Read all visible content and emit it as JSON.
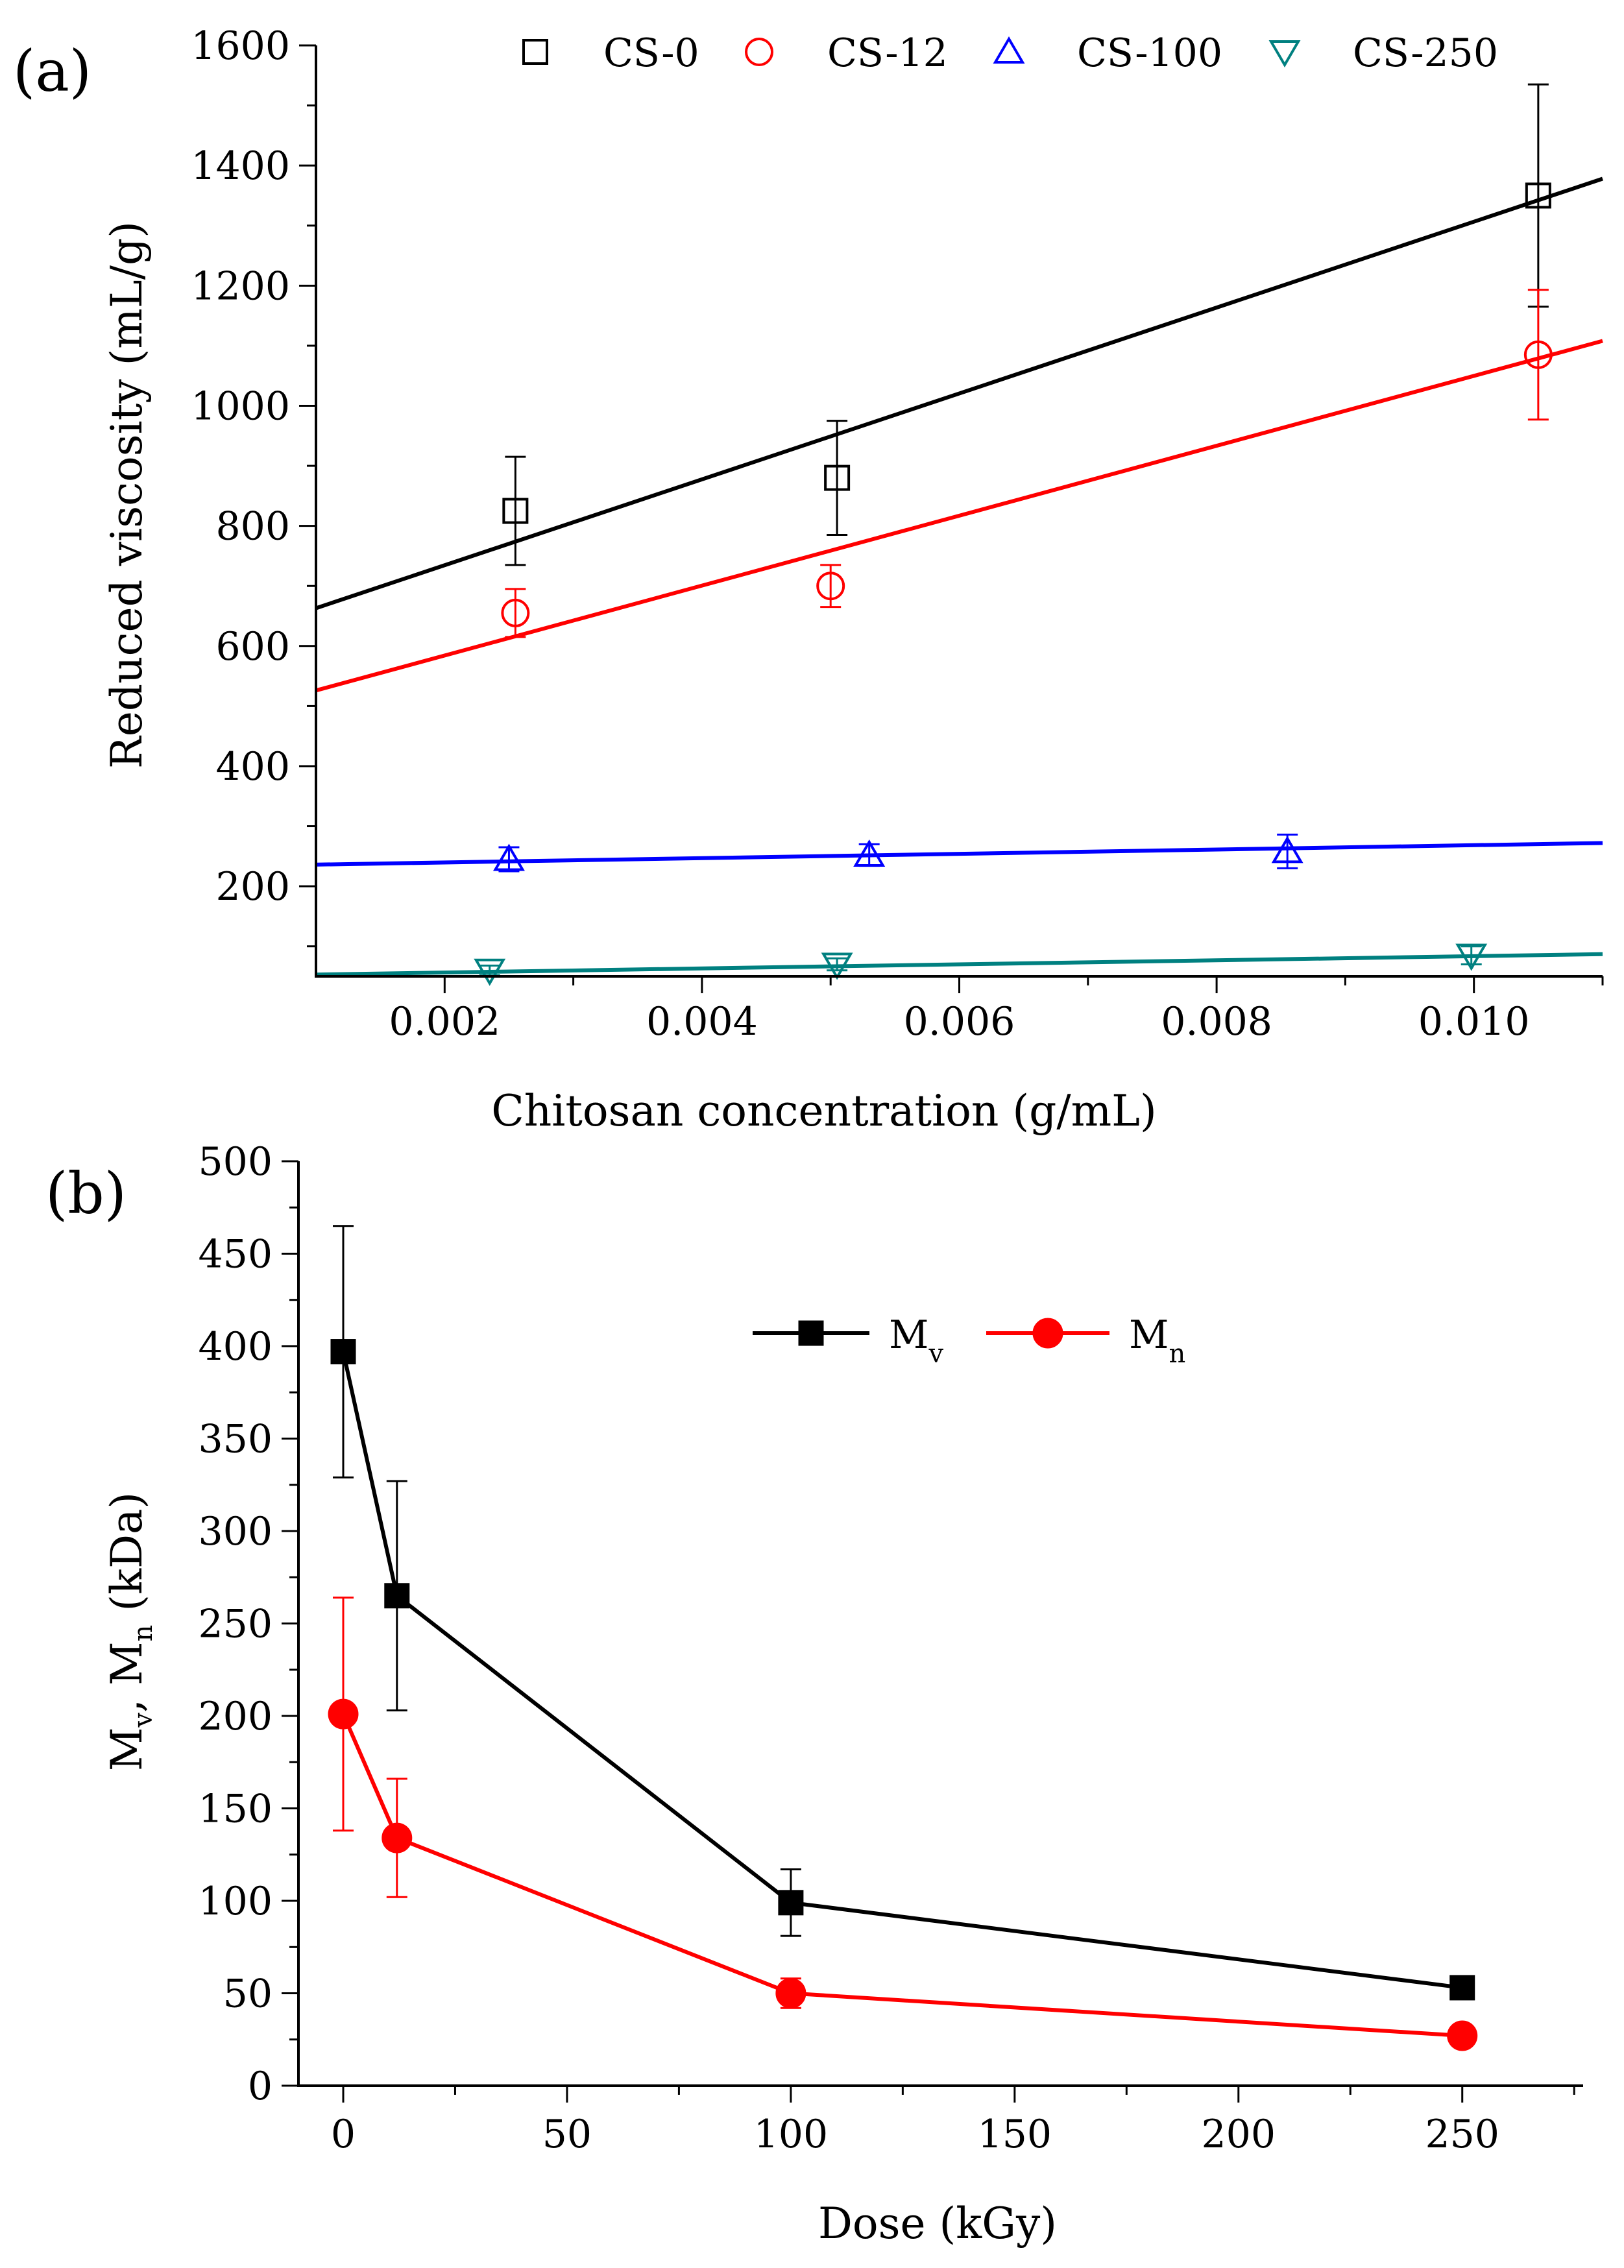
{
  "chart_data": [
    {
      "panel_label": "(a)",
      "type": "scatter",
      "xlabel": "Chitosan concentration (g/mL)",
      "ylabel": "Reduced viscosity (mL/g)",
      "xlim": [
        0.001,
        0.011
      ],
      "ylim": [
        50,
        1600
      ],
      "xticks": [
        0.002,
        0.004,
        0.006,
        0.008,
        0.01
      ],
      "xtick_labels": [
        "0.002",
        "0.004",
        "0.006",
        "0.008",
        "0.010"
      ],
      "yticks": [
        200,
        400,
        600,
        800,
        1000,
        1200,
        1400,
        1600
      ],
      "ytick_labels": [
        "200",
        "400",
        "600",
        "800",
        "1000",
        "1200",
        "1400",
        "1600"
      ],
      "legend_position": "top",
      "series": [
        {
          "name": "CS-0",
          "color": "#000000",
          "marker": "square",
          "x": [
            0.00255,
            0.00505,
            0.0105
          ],
          "y": [
            825,
            880,
            1350
          ],
          "err": [
            90,
            95,
            185
          ],
          "fit": [
            [
              0.001,
              663
            ],
            [
              0.011,
              1378
            ]
          ]
        },
        {
          "name": "CS-12",
          "color": "#ff0000",
          "marker": "circle",
          "x": [
            0.00255,
            0.005,
            0.0105
          ],
          "y": [
            655,
            700,
            1085
          ],
          "err": [
            40,
            35,
            108
          ],
          "fit": [
            [
              0.001,
              526
            ],
            [
              0.011,
              1108
            ]
          ]
        },
        {
          "name": "CS-100",
          "color": "#0000ff",
          "marker": "triangle-up",
          "x": [
            0.0025,
            0.0053,
            0.00855
          ],
          "y": [
            245,
            252,
            258
          ],
          "err": [
            20,
            18,
            28
          ],
          "fit": [
            [
              0.001,
              236
            ],
            [
              0.011,
              272
            ]
          ]
        },
        {
          "name": "CS-250",
          "color": "#008080",
          "marker": "triangle-down",
          "x": [
            0.00235,
            0.00505,
            0.00998
          ],
          "y": [
            60,
            70,
            85
          ],
          "err": [
            8,
            10,
            15
          ],
          "fit": [
            [
              0.001,
              53
            ],
            [
              0.011,
              87
            ]
          ]
        }
      ]
    },
    {
      "panel_label": "(b)",
      "type": "line",
      "xlabel": "Dose (kGy)",
      "ylabel_parts": [
        "M",
        "v",
        ", M",
        "n",
        " (kDa)"
      ],
      "xlim": [
        -10,
        277
      ],
      "ylim": [
        0,
        500
      ],
      "xticks": [
        0,
        50,
        100,
        150,
        200,
        250
      ],
      "xtick_labels": [
        "0",
        "50",
        "100",
        "150",
        "200",
        "250"
      ],
      "yticks": [
        0,
        50,
        100,
        150,
        200,
        250,
        300,
        350,
        400,
        450,
        500
      ],
      "ytick_labels": [
        "0",
        "50",
        "100",
        "150",
        "200",
        "250",
        "300",
        "350",
        "400",
        "450",
        "500"
      ],
      "legend_position": "top-right",
      "series": [
        {
          "name": "M",
          "sub": "v",
          "color": "#000000",
          "marker": "filled-square",
          "x": [
            0,
            12,
            100,
            250
          ],
          "y": [
            397,
            265,
            99,
            53
          ],
          "err": [
            68,
            62,
            18,
            6
          ]
        },
        {
          "name": "M",
          "sub": "n",
          "color": "#ff0000",
          "marker": "filled-circle",
          "x": [
            0,
            12,
            100,
            250
          ],
          "y": [
            201,
            134,
            50,
            27
          ],
          "err": [
            63,
            32,
            8,
            3
          ]
        }
      ]
    }
  ]
}
